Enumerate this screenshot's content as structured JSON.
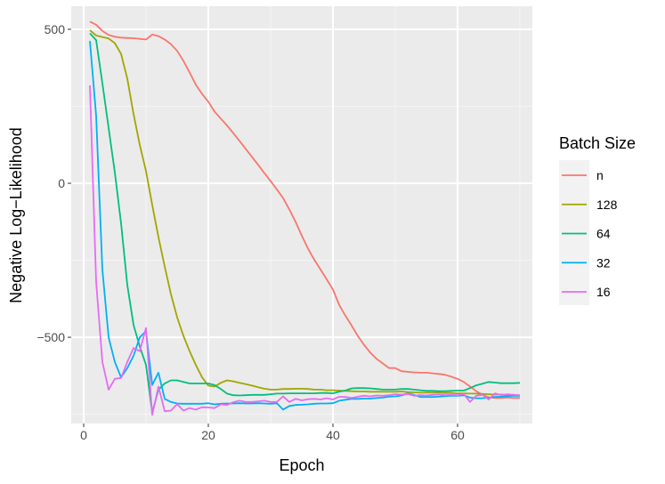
{
  "chart_data": {
    "type": "line",
    "xlabel": "Epoch",
    "ylabel": "Negative Log−Likelihood",
    "xlim": [
      -2,
      72
    ],
    "ylim": [
      -780,
      575
    ],
    "x_ticks": [
      0,
      20,
      40,
      60
    ],
    "x_tick_labels": [
      "0",
      "20",
      "40",
      "60"
    ],
    "y_ticks": [
      500,
      0,
      -500
    ],
    "y_tick_labels": [
      "500",
      "0",
      "−500"
    ],
    "grid": true,
    "background": "#ebebeb",
    "legend": {
      "title": "Batch Size",
      "position": "right"
    },
    "series": [
      {
        "name": "n",
        "color": "#F8766D",
        "x": [
          1,
          2,
          3,
          4,
          5,
          6,
          7,
          8,
          9,
          10,
          11,
          12,
          13,
          14,
          15,
          16,
          17,
          18,
          19,
          20,
          21,
          22,
          23,
          24,
          25,
          26,
          27,
          28,
          29,
          30,
          31,
          32,
          33,
          34,
          35,
          36,
          37,
          38,
          39,
          40,
          41,
          42,
          43,
          44,
          45,
          46,
          47,
          48,
          49,
          50,
          51,
          52,
          53,
          54,
          55,
          56,
          57,
          58,
          59,
          60,
          61,
          62,
          63,
          64,
          65,
          66,
          67,
          68,
          69,
          70
        ],
        "values": [
          525,
          515,
          495,
          482,
          476,
          473,
          472,
          471,
          469,
          467,
          483,
          478,
          467,
          452,
          430,
          398,
          360,
          320,
          290,
          265,
          233,
          210,
          188,
          163,
          138,
          112,
          86,
          60,
          33,
          7,
          -20,
          -48,
          -85,
          -125,
          -170,
          -212,
          -248,
          -280,
          -312,
          -345,
          -395,
          -430,
          -462,
          -496,
          -525,
          -550,
          -570,
          -585,
          -600,
          -600,
          -610,
          -612,
          -614,
          -615,
          -615,
          -617,
          -619,
          -622,
          -628,
          -635,
          -645,
          -660,
          -675,
          -687,
          -695,
          -697,
          -697,
          -696,
          -697,
          -697
        ]
      },
      {
        "name": "128",
        "color": "#A3A500",
        "x": [
          1,
          2,
          3,
          4,
          5,
          6,
          7,
          8,
          9,
          10,
          11,
          12,
          13,
          14,
          15,
          16,
          17,
          18,
          19,
          20,
          21,
          22,
          23,
          24,
          25,
          26,
          27,
          28,
          29,
          30,
          31,
          32,
          33,
          34,
          35,
          36,
          37,
          38,
          39,
          40,
          41,
          42,
          43,
          44,
          45,
          46,
          47,
          48,
          49,
          50,
          51,
          52,
          53,
          54,
          55,
          56,
          57,
          58,
          59,
          60,
          61,
          62,
          63,
          64,
          65,
          66,
          67,
          68,
          69,
          70
        ],
        "values": [
          497,
          480,
          475,
          470,
          455,
          420,
          340,
          225,
          125,
          40,
          -70,
          -175,
          -270,
          -360,
          -435,
          -495,
          -545,
          -590,
          -630,
          -657,
          -660,
          -648,
          -640,
          -643,
          -648,
          -652,
          -657,
          -662,
          -667,
          -670,
          -670,
          -668,
          -668,
          -667,
          -667,
          -668,
          -670,
          -670,
          -672,
          -672,
          -673,
          -674,
          -675,
          -676,
          -676,
          -677,
          -677,
          -677,
          -677,
          -677,
          -676,
          -678,
          -679,
          -680,
          -680,
          -680,
          -680,
          -681,
          -681,
          -682,
          -682,
          -683,
          -683,
          -684,
          -685,
          -686,
          -686,
          -687,
          -687,
          -690
        ]
      },
      {
        "name": "64",
        "color": "#00BF7D",
        "x": [
          1,
          2,
          3,
          4,
          5,
          6,
          7,
          8,
          9,
          10,
          11,
          12,
          13,
          14,
          15,
          16,
          17,
          18,
          19,
          20,
          21,
          22,
          23,
          24,
          25,
          26,
          27,
          28,
          29,
          30,
          31,
          32,
          33,
          34,
          35,
          36,
          37,
          38,
          39,
          40,
          41,
          42,
          43,
          44,
          45,
          46,
          47,
          48,
          49,
          50,
          51,
          52,
          53,
          54,
          55,
          56,
          57,
          58,
          59,
          60,
          61,
          62,
          63,
          64,
          65,
          66,
          67,
          68,
          69,
          70
        ],
        "values": [
          487,
          465,
          325,
          180,
          35,
          -130,
          -330,
          -460,
          -530,
          -590,
          -745,
          -670,
          -650,
          -640,
          -640,
          -645,
          -650,
          -650,
          -650,
          -650,
          -655,
          -668,
          -683,
          -688,
          -689,
          -688,
          -687,
          -687,
          -687,
          -685,
          -683,
          -683,
          -682,
          -682,
          -682,
          -682,
          -682,
          -681,
          -681,
          -682,
          -677,
          -673,
          -666,
          -665,
          -665,
          -666,
          -668,
          -670,
          -670,
          -670,
          -668,
          -668,
          -670,
          -672,
          -674,
          -674,
          -675,
          -675,
          -674,
          -673,
          -673,
          -665,
          -656,
          -651,
          -645,
          -647,
          -649,
          -649,
          -649,
          -648
        ]
      },
      {
        "name": "32",
        "color": "#00B0F6",
        "x": [
          1,
          2,
          3,
          4,
          5,
          6,
          7,
          8,
          9,
          10,
          11,
          12,
          13,
          14,
          15,
          16,
          17,
          18,
          19,
          20,
          21,
          22,
          23,
          24,
          25,
          26,
          27,
          28,
          29,
          30,
          31,
          32,
          33,
          34,
          35,
          36,
          37,
          38,
          39,
          40,
          41,
          42,
          43,
          44,
          45,
          46,
          47,
          48,
          49,
          50,
          51,
          52,
          53,
          54,
          55,
          56,
          57,
          58,
          59,
          60,
          61,
          62,
          63,
          64,
          65,
          66,
          67,
          68,
          69,
          70
        ],
        "values": [
          462,
          220,
          -280,
          -500,
          -580,
          -630,
          -600,
          -560,
          -500,
          -480,
          -655,
          -615,
          -700,
          -710,
          -715,
          -716,
          -716,
          -716,
          -716,
          -714,
          -718,
          -716,
          -715,
          -715,
          -714,
          -715,
          -715,
          -714,
          -715,
          -716,
          -714,
          -735,
          -723,
          -720,
          -719,
          -718,
          -716,
          -715,
          -715,
          -714,
          -706,
          -703,
          -700,
          -700,
          -699,
          -699,
          -697,
          -696,
          -693,
          -692,
          -689,
          -682,
          -687,
          -694,
          -694,
          -694,
          -693,
          -691,
          -690,
          -690,
          -688,
          -696,
          -698,
          -698,
          -696,
          -694,
          -693,
          -691,
          -690,
          -690
        ]
      },
      {
        "name": "16",
        "color": "#E76BF3",
        "x": [
          1,
          2,
          3,
          4,
          5,
          6,
          7,
          8,
          9,
          10,
          11,
          12,
          13,
          14,
          15,
          16,
          17,
          18,
          19,
          20,
          21,
          22,
          23,
          24,
          25,
          26,
          27,
          28,
          29,
          30,
          31,
          32,
          33,
          34,
          35,
          36,
          37,
          38,
          39,
          40,
          41,
          42,
          43,
          44,
          45,
          46,
          47,
          48,
          49,
          50,
          51,
          52,
          53,
          54,
          55,
          56,
          57,
          58,
          59,
          60,
          61,
          62,
          63,
          64,
          65,
          66,
          67,
          68,
          69,
          70
        ],
        "values": [
          318,
          -320,
          -580,
          -670,
          -635,
          -632,
          -580,
          -535,
          -545,
          -470,
          -752,
          -660,
          -740,
          -738,
          -717,
          -738,
          -730,
          -735,
          -727,
          -728,
          -730,
          -718,
          -720,
          -711,
          -706,
          -710,
          -710,
          -708,
          -706,
          -710,
          -710,
          -692,
          -710,
          -700,
          -705,
          -701,
          -700,
          -702,
          -698,
          -702,
          -693,
          -694,
          -697,
          -693,
          -690,
          -692,
          -689,
          -690,
          -688,
          -685,
          -686,
          -684,
          -690,
          -688,
          -689,
          -687,
          -686,
          -688,
          -687,
          -688,
          -684,
          -710,
          -690,
          -687,
          -702,
          -682,
          -688,
          -685,
          -687,
          -688
        ]
      }
    ]
  }
}
